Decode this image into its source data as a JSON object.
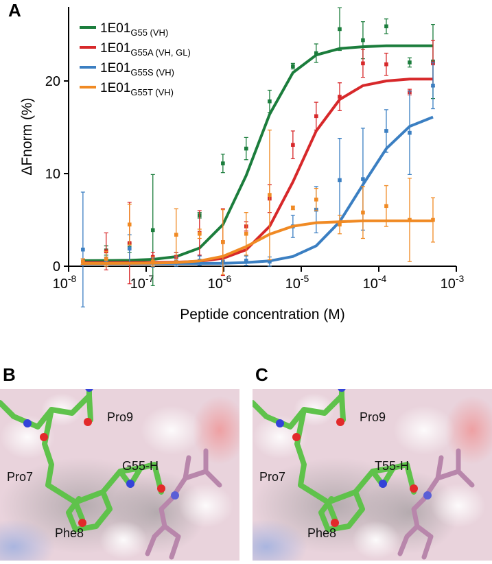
{
  "chart_data": {
    "type": "scatter",
    "panel_label": "A",
    "xlabel": "Peptide concentration (M)",
    "ylabel": "ΔFnorm (%)",
    "xscale": "log",
    "xlim": [
      1e-08,
      0.001
    ],
    "ylim": [
      0,
      28
    ],
    "xticks": [
      {
        "value": 1e-08,
        "label": "10",
        "power": "-8"
      },
      {
        "value": 1e-07,
        "label": "10",
        "power": "-7"
      },
      {
        "value": 1e-06,
        "label": "10",
        "power": "-6"
      },
      {
        "value": 1e-05,
        "label": "10",
        "power": "-5"
      },
      {
        "value": 0.0001,
        "label": "10",
        "power": "-4"
      },
      {
        "value": 0.001,
        "label": "10",
        "power": "-3"
      }
    ],
    "yticks": [
      0,
      10,
      20
    ],
    "x": [
      1.53e-08,
      3.05e-08,
      6.1e-08,
      1.22e-07,
      2.44e-07,
      4.88e-07,
      9.77e-07,
      1.95e-06,
      3.91e-06,
      7.81e-06,
      1.56e-05,
      3.13e-05,
      6.25e-05,
      0.000125,
      0.00025,
      0.0005
    ],
    "series": [
      {
        "name": "1E01",
        "name_sub": "G55 (VH)",
        "color": "#1b7d3c",
        "values": [
          0.5,
          1.7,
          2.0,
          3.9,
          1.0,
          5.5,
          11.1,
          12.7,
          17.8,
          21.6,
          23.0,
          25.6,
          24.4,
          25.9,
          22.0,
          22.1
        ],
        "errors": [
          0.3,
          0.5,
          0.5,
          6.0,
          0.5,
          0.3,
          1.0,
          1.2,
          1.2,
          0.3,
          1.0,
          2.3,
          2.0,
          0.8,
          0.5,
          4.0
        ],
        "fit": [
          0.6,
          0.61,
          0.64,
          0.74,
          1.04,
          1.96,
          4.5,
          9.8,
          16.4,
          20.9,
          22.8,
          23.5,
          23.7,
          23.8,
          23.8,
          23.8
        ]
      },
      {
        "name": "1E01",
        "name_sub": "G55A (VH, GL)",
        "color": "#d7282a",
        "values": [
          0.5,
          1.6,
          2.5,
          1.0,
          1.0,
          3.6,
          2.6,
          4.3,
          7.3,
          13.1,
          16.2,
          18.3,
          21.9,
          21.8,
          18.8,
          21.9
        ],
        "errors": [
          0.3,
          2.0,
          4.4,
          0.5,
          0.5,
          2.4,
          3.6,
          0.5,
          1.5,
          1.5,
          1.5,
          1.5,
          1.5,
          1.2,
          0.3,
          2.5
        ],
        "fit": [
          0.4,
          0.4,
          0.41,
          0.41,
          0.44,
          0.54,
          0.85,
          1.78,
          4.3,
          9.1,
          14.6,
          18.0,
          19.5,
          20.0,
          20.2,
          20.2
        ]
      },
      {
        "name": "1E01",
        "name_sub": "G55S (VH)",
        "color": "#3b7fc2",
        "values": [
          1.8,
          0.5,
          1.9,
          0.4,
          0.5,
          0.6,
          0.5,
          0.6,
          0.5,
          4.3,
          6.1,
          9.3,
          9.4,
          14.6,
          14.4,
          19.5
        ],
        "errors": [
          6.2,
          0.5,
          1.5,
          0.5,
          0.5,
          0.5,
          0.5,
          0.5,
          0.5,
          1.2,
          2.5,
          4.5,
          5.5,
          2.3,
          4.5,
          2.5
        ],
        "fit": [
          0.3,
          0.3,
          0.3,
          0.3,
          0.3,
          0.3,
          0.32,
          0.4,
          0.57,
          1.05,
          2.2,
          4.8,
          8.8,
          12.7,
          15.1,
          16.1
        ]
      },
      {
        "name": "1E01",
        "name_sub": "G55T (VH)",
        "color": "#f08a24",
        "values": [
          0.5,
          0.8,
          4.5,
          0.5,
          3.4,
          3.5,
          2.6,
          3.5,
          7.7,
          6.3,
          7.2,
          4.5,
          5.8,
          6.5,
          5.0,
          5.0
        ],
        "errors": [
          0.3,
          0.8,
          2.2,
          0.5,
          2.8,
          0.5,
          3.5,
          2.3,
          7.0,
          0.2,
          1.2,
          1.0,
          2.8,
          2.2,
          4.5,
          2.4
        ],
        "fit": [
          0.3,
          0.3,
          0.31,
          0.33,
          0.39,
          0.57,
          1.07,
          2.12,
          3.45,
          4.32,
          4.7,
          4.8,
          4.9,
          4.9,
          4.9,
          4.9
        ]
      }
    ]
  },
  "panels": [
    {
      "label": "B",
      "residues": [
        "Pro9",
        "Pro7",
        "G55-H",
        "Phe8"
      ]
    },
    {
      "label": "C",
      "residues": [
        "Pro9",
        "Pro7",
        "T55-H",
        "Phe8"
      ]
    }
  ]
}
